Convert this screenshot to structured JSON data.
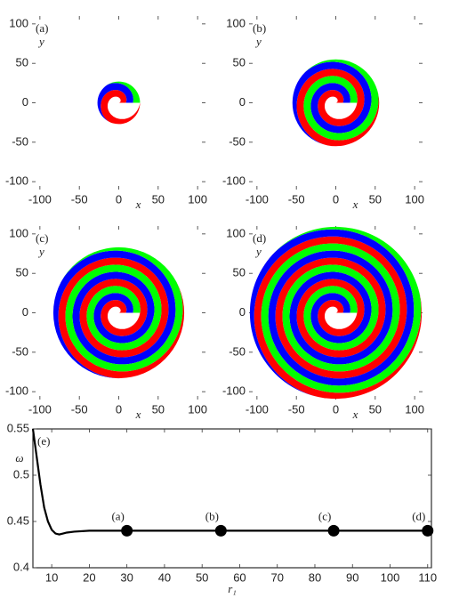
{
  "chart_data": [
    {
      "type": "spiral",
      "label": "(a)",
      "radius": 27,
      "colors": [
        "#ff0000",
        "#0000ff",
        "#00ff00"
      ],
      "xlabel": "x",
      "ylabel": "y",
      "xlim": [
        -110,
        110
      ],
      "ylim": [
        -110,
        110
      ],
      "xticks": [
        -100,
        -50,
        0,
        50,
        100
      ],
      "yticks": [
        -100,
        -50,
        0,
        50,
        100
      ]
    },
    {
      "type": "spiral",
      "label": "(b)",
      "radius": 55,
      "colors": [
        "#ff0000",
        "#0000ff",
        "#00ff00"
      ],
      "xlabel": "x",
      "ylabel": "y",
      "xlim": [
        -110,
        110
      ],
      "ylim": [
        -110,
        110
      ],
      "xticks": [
        -100,
        -50,
        0,
        50,
        100
      ],
      "yticks": [
        -100,
        -50,
        0,
        50,
        100
      ]
    },
    {
      "type": "spiral",
      "label": "(c)",
      "radius": 83,
      "colors": [
        "#ff0000",
        "#0000ff",
        "#00ff00"
      ],
      "xlabel": "x",
      "ylabel": "y",
      "xlim": [
        -110,
        110
      ],
      "ylim": [
        -110,
        110
      ],
      "xticks": [
        -100,
        -50,
        0,
        50,
        100
      ],
      "yticks": [
        -100,
        -50,
        0,
        50,
        100
      ]
    },
    {
      "type": "spiral",
      "label": "(d)",
      "radius": 109,
      "colors": [
        "#ff0000",
        "#0000ff",
        "#00ff00"
      ],
      "xlabel": "x",
      "ylabel": "y",
      "xlim": [
        -110,
        110
      ],
      "ylim": [
        -110,
        110
      ],
      "xticks": [
        -100,
        -50,
        0,
        50,
        100
      ],
      "yticks": [
        -100,
        -50,
        0,
        50,
        100
      ]
    },
    {
      "type": "line",
      "label": "(e)",
      "xlabel": "r₁",
      "ylabel": "ω",
      "xlim": [
        5,
        111
      ],
      "ylim": [
        0.4,
        0.55
      ],
      "xticks": [
        10,
        20,
        30,
        40,
        50,
        60,
        70,
        80,
        90,
        100,
        110
      ],
      "yticks": [
        0.4,
        0.45,
        0.5,
        0.55
      ],
      "x": [
        5,
        6,
        7,
        8,
        9,
        10,
        11,
        12,
        13,
        14,
        16,
        20,
        30,
        55,
        85,
        110
      ],
      "series": [
        {
          "color": "#000000",
          "values": [
            0.55,
            0.52,
            0.49,
            0.465,
            0.45,
            0.441,
            0.437,
            0.436,
            0.437,
            0.438,
            0.439,
            0.44,
            0.44,
            0.44,
            0.44,
            0.44
          ]
        }
      ],
      "markers": {
        "x": [
          30,
          55,
          85,
          110
        ],
        "values": [
          0.44,
          0.44,
          0.44,
          0.44
        ],
        "labels": [
          "(a)",
          "(b)",
          "(c)",
          "(d)"
        ]
      }
    }
  ]
}
